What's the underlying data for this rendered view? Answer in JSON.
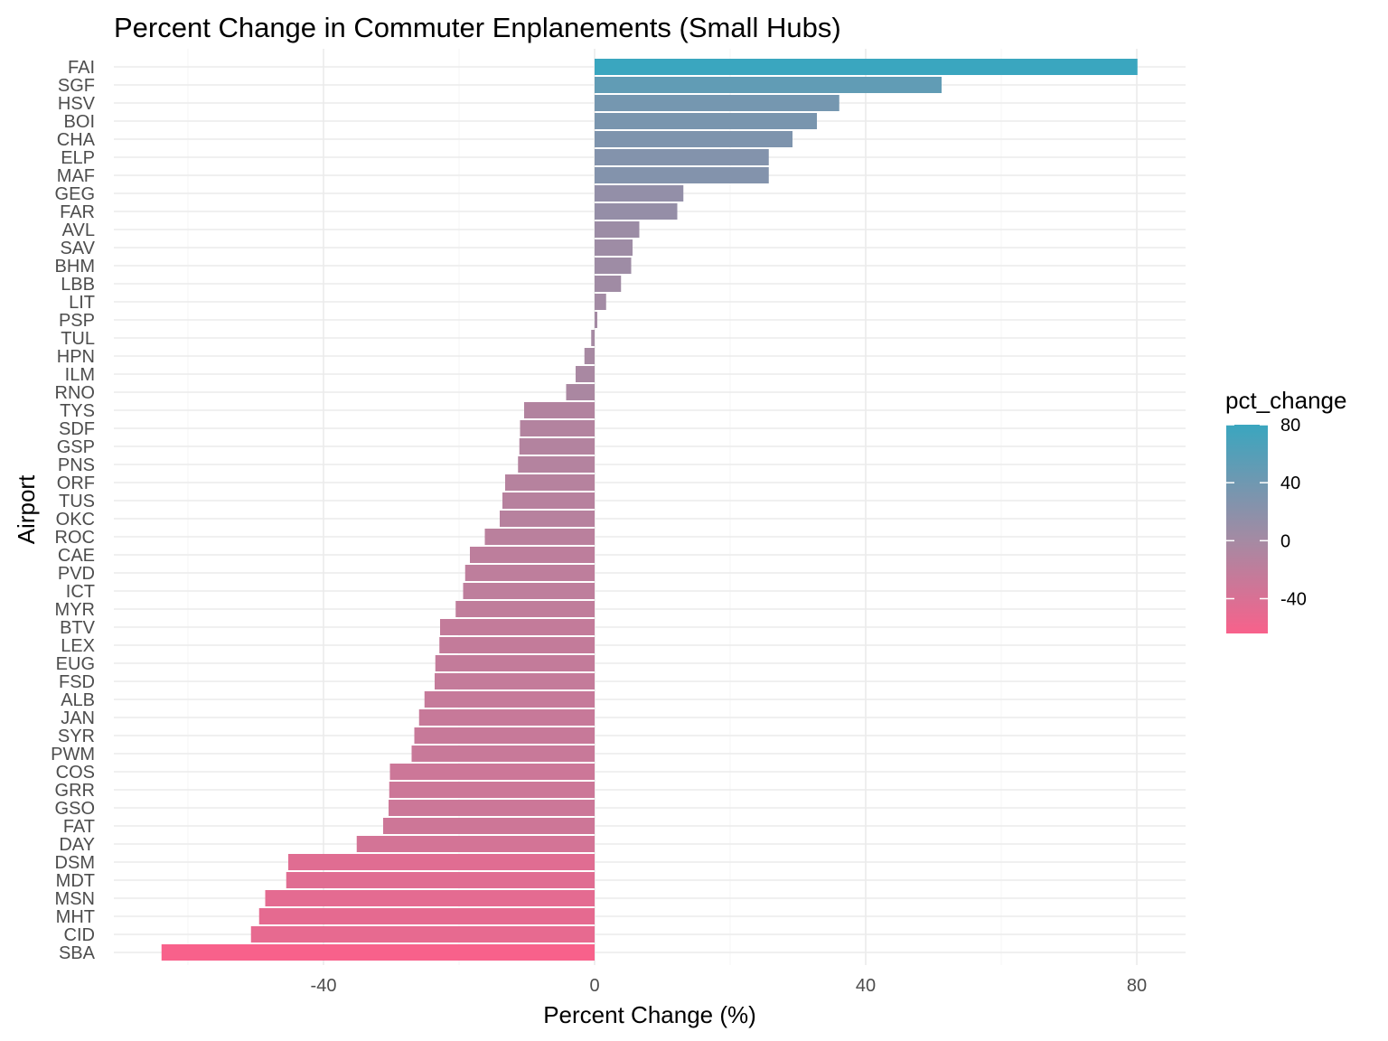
{
  "chart_data": {
    "type": "bar",
    "orientation": "horizontal",
    "title": "Percent Change in Commuter Enplanements (Small Hubs)",
    "xlabel": "Percent Change (%)",
    "ylabel": "Airport",
    "xlim": [
      -68,
      87
    ],
    "x_ticks": [
      -40,
      0,
      40,
      80
    ],
    "x_tick_labels": [
      "-40",
      "0",
      "40",
      "80"
    ],
    "grid": true,
    "legend": {
      "title": "pct_change",
      "placement": "right",
      "type": "color-gradient",
      "ticks": [
        80,
        40,
        0,
        -40
      ],
      "tick_labels": [
        "80",
        "40",
        "0",
        "-40"
      ],
      "range": [
        -64,
        80
      ],
      "low_color": "#f8618b",
      "mid_color": "#a58aa3",
      "high_color": "#3aa6bf"
    },
    "categories": [
      "FAI",
      "SGF",
      "HSV",
      "BOI",
      "CHA",
      "ELP",
      "MAF",
      "GEG",
      "FAR",
      "AVL",
      "SAV",
      "BHM",
      "LBB",
      "LIT",
      "PSP",
      "TUL",
      "HPN",
      "ILM",
      "RNO",
      "TYS",
      "SDF",
      "GSP",
      "PNS",
      "ORF",
      "TUS",
      "OKC",
      "ROC",
      "CAE",
      "PVD",
      "ICT",
      "MYR",
      "BTV",
      "LEX",
      "EUG",
      "FSD",
      "ALB",
      "JAN",
      "SYR",
      "PWM",
      "COS",
      "GRR",
      "GSO",
      "FAT",
      "DAY",
      "DSM",
      "MDT",
      "MSN",
      "MHT",
      "CID",
      "SBA"
    ],
    "values": [
      80.1,
      51.2,
      36.1,
      32.8,
      29.2,
      25.7,
      25.7,
      13.1,
      12.2,
      6.6,
      5.6,
      5.4,
      3.9,
      1.7,
      0.4,
      -0.5,
      -1.5,
      -2.8,
      -4.2,
      -10.4,
      -11.0,
      -11.1,
      -11.3,
      -13.2,
      -13.6,
      -14.0,
      -16.2,
      -18.4,
      -19.1,
      -19.4,
      -20.5,
      -22.8,
      -22.9,
      -23.5,
      -23.6,
      -25.1,
      -25.9,
      -26.6,
      -27.0,
      -30.2,
      -30.3,
      -30.4,
      -31.2,
      -35.1,
      -45.2,
      -45.5,
      -48.6,
      -49.5,
      -50.7,
      -63.9
    ]
  }
}
